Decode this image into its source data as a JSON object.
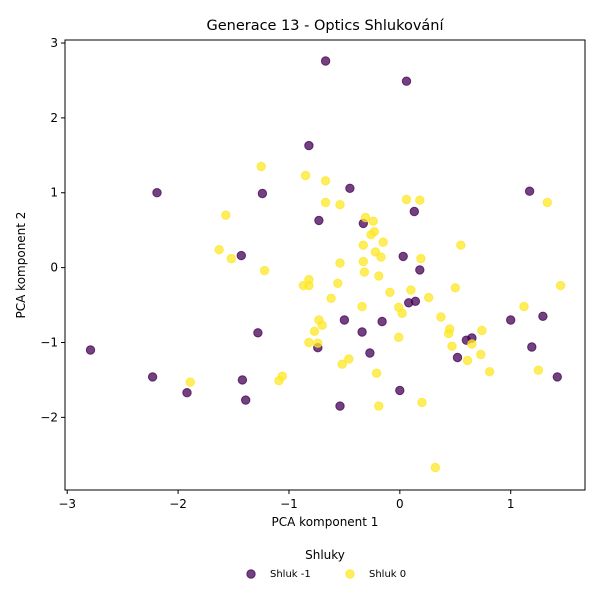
{
  "chart_data": {
    "type": "scatter",
    "title": "Generace 13 - Optics Shlukování",
    "xlabel": "PCA komponent 1",
    "ylabel": "PCA komponent 2",
    "xlim": [
      -3.02,
      1.67
    ],
    "ylim": [
      -2.97,
      3.04
    ],
    "xticks": [
      -3,
      -2,
      -1,
      0,
      1
    ],
    "yticks": [
      -2,
      -1,
      0,
      1,
      2,
      3
    ],
    "grid": false,
    "legend": {
      "title": "Shluky",
      "placement": "bottom-center"
    },
    "colors": {
      "Shluk -1": "#440154",
      "Shluk 0": "#fde725"
    },
    "series": [
      {
        "name": "Shluk -1",
        "points": [
          [
            -0.67,
            2.76
          ],
          [
            0.06,
            2.49
          ],
          [
            -0.82,
            1.63
          ],
          [
            -2.19,
            1.0
          ],
          [
            -1.24,
            0.99
          ],
          [
            -0.45,
            1.06
          ],
          [
            1.17,
            1.02
          ],
          [
            0.13,
            0.75
          ],
          [
            -0.73,
            0.63
          ],
          [
            -0.33,
            0.59
          ],
          [
            -1.43,
            0.16
          ],
          [
            0.03,
            0.15
          ],
          [
            0.18,
            -0.03
          ],
          [
            0.08,
            -0.47
          ],
          [
            0.14,
            -0.45
          ],
          [
            -0.5,
            -0.7
          ],
          [
            -0.16,
            -0.72
          ],
          [
            1.0,
            -0.7
          ],
          [
            1.29,
            -0.65
          ],
          [
            -1.28,
            -0.87
          ],
          [
            -0.34,
            -0.86
          ],
          [
            0.6,
            -0.97
          ],
          [
            0.65,
            -0.94
          ],
          [
            1.19,
            -1.06
          ],
          [
            -0.74,
            -1.07
          ],
          [
            -0.27,
            -1.14
          ],
          [
            0.52,
            -1.2
          ],
          [
            -2.79,
            -1.1
          ],
          [
            -2.23,
            -1.46
          ],
          [
            -1.42,
            -1.5
          ],
          [
            1.42,
            -1.46
          ],
          [
            -1.92,
            -1.67
          ],
          [
            0.0,
            -1.64
          ],
          [
            -1.39,
            -1.77
          ],
          [
            -0.54,
            -1.85
          ]
        ]
      },
      {
        "name": "Shluk 0",
        "points": [
          [
            -1.25,
            1.35
          ],
          [
            -0.85,
            1.23
          ],
          [
            -0.67,
            1.16
          ],
          [
            -0.67,
            0.87
          ],
          [
            -0.54,
            0.84
          ],
          [
            0.06,
            0.91
          ],
          [
            0.18,
            0.9
          ],
          [
            1.33,
            0.87
          ],
          [
            -1.57,
            0.7
          ],
          [
            -0.31,
            0.67
          ],
          [
            -0.24,
            0.62
          ],
          [
            -0.26,
            0.44
          ],
          [
            -0.23,
            0.48
          ],
          [
            -0.15,
            0.34
          ],
          [
            -0.33,
            0.3
          ],
          [
            0.55,
            0.3
          ],
          [
            -1.63,
            0.24
          ],
          [
            -0.22,
            0.21
          ],
          [
            -1.52,
            0.12
          ],
          [
            -0.17,
            0.14
          ],
          [
            0.19,
            0.12
          ],
          [
            -0.54,
            0.06
          ],
          [
            -0.33,
            0.08
          ],
          [
            -1.22,
            -0.04
          ],
          [
            -0.32,
            -0.06
          ],
          [
            -0.19,
            -0.11
          ],
          [
            -0.82,
            -0.16
          ],
          [
            -0.56,
            -0.21
          ],
          [
            -0.87,
            -0.24
          ],
          [
            -0.82,
            -0.24
          ],
          [
            1.45,
            -0.24
          ],
          [
            0.5,
            -0.27
          ],
          [
            0.1,
            -0.3
          ],
          [
            -0.09,
            -0.33
          ],
          [
            0.26,
            -0.4
          ],
          [
            -0.62,
            -0.41
          ],
          [
            -0.34,
            -0.52
          ],
          [
            -0.01,
            -0.53
          ],
          [
            0.02,
            -0.61
          ],
          [
            0.37,
            -0.66
          ],
          [
            1.12,
            -0.52
          ],
          [
            -0.73,
            -0.7
          ],
          [
            -0.7,
            -0.77
          ],
          [
            -0.77,
            -0.85
          ],
          [
            0.45,
            -0.82
          ],
          [
            0.44,
            -0.88
          ],
          [
            0.74,
            -0.84
          ],
          [
            -0.01,
            -0.93
          ],
          [
            -0.82,
            -1.0
          ],
          [
            -0.74,
            -1.01
          ],
          [
            0.47,
            -1.05
          ],
          [
            0.65,
            -1.02
          ],
          [
            0.73,
            -1.16
          ],
          [
            -0.46,
            -1.22
          ],
          [
            -0.52,
            -1.29
          ],
          [
            0.61,
            -1.24
          ],
          [
            1.25,
            -1.37
          ],
          [
            0.81,
            -1.39
          ],
          [
            -0.21,
            -1.41
          ],
          [
            -1.06,
            -1.45
          ],
          [
            -1.09,
            -1.51
          ],
          [
            -1.89,
            -1.53
          ],
          [
            0.2,
            -1.8
          ],
          [
            -0.19,
            -1.85
          ],
          [
            0.32,
            -2.67
          ]
        ]
      }
    ]
  }
}
